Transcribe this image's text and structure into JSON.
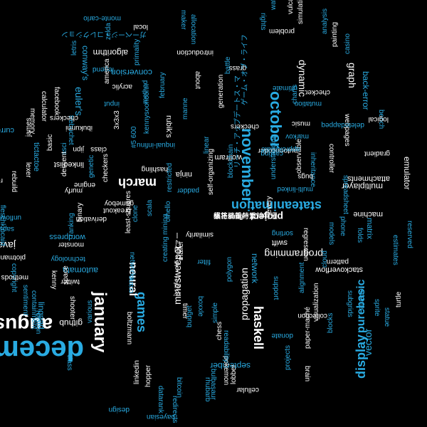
{
  "palette": {
    "background": "#000000",
    "white": "#ffffff",
    "blue": "#29abe2"
  },
  "words": [
    {
      "text": "december",
      "c": "b",
      "s": 40,
      "b": true
    },
    {
      "text": "august",
      "c": "w",
      "s": 28,
      "b": true
    },
    {
      "text": "january",
      "c": "w",
      "s": 24,
      "b": true
    },
    {
      "text": "november",
      "c": "b",
      "s": 22,
      "b": true
    },
    {
      "text": "october",
      "c": "b",
      "s": 22,
      "b": true
    },
    {
      "text": "stateanimation",
      "c": "b",
      "s": 18,
      "b": true
    },
    {
      "text": "display",
      "c": "b",
      "s": 18,
      "b": true
    },
    {
      "text": "march",
      "c": "w",
      "s": 18,
      "b": true
    },
    {
      "text": "haskell",
      "c": "w",
      "s": 18,
      "b": true
    },
    {
      "text": "games",
      "c": "b",
      "s": 18,
      "b": true
    },
    {
      "text": "neural",
      "c": "w",
      "s": 16,
      "b": true
    },
    {
      "text": "purebasic",
      "c": "b",
      "s": 16,
      "b": true
    },
    {
      "text": "propagation",
      "c": "w",
      "s": 14,
      "b": false
    },
    {
      "text": "minesweeper",
      "c": "w",
      "s": 14,
      "b": false
    },
    {
      "text": "javascript",
      "c": "w",
      "s": 14,
      "b": false
    },
    {
      "text": "programming",
      "c": "w",
      "s": 14,
      "b": false
    },
    {
      "text": "vector",
      "c": "b",
      "s": 14,
      "b": false
    },
    {
      "text": "graph",
      "c": "w",
      "s": 14,
      "b": false
    },
    {
      "text": "back-error",
      "c": "b",
      "s": 12,
      "b": false
    },
    {
      "text": "project",
      "c": "w",
      "s": 14,
      "b": true
    },
    {
      "text": "euler's",
      "c": "b",
      "s": 14,
      "b": false
    },
    {
      "text": "dynamic",
      "c": "w",
      "s": 14,
      "b": false
    },
    {
      "text": "github",
      "c": "w",
      "s": 12,
      "b": false
    },
    {
      "text": "conway's",
      "c": "b",
      "s": 12,
      "b": false
    },
    {
      "text": "algorithm",
      "c": "w",
      "s": 12,
      "b": false
    },
    {
      "text": "conversion",
      "c": "b",
      "s": 12,
      "b": false
    },
    {
      "text": "september",
      "c": "b",
      "s": 12,
      "b": false
    },
    {
      "text": "linqpad",
      "c": "b",
      "s": 12,
      "b": false
    },
    {
      "text": "automata",
      "c": "b",
      "s": 12,
      "b": false
    },
    {
      "text": "network",
      "c": "b",
      "s": 12,
      "b": false
    },
    {
      "text": "multiplayer",
      "c": "w",
      "s": 12,
      "b": false
    },
    {
      "text": "emulator",
      "c": "w",
      "s": 12,
      "b": false
    },
    {
      "text": "stackoverflow",
      "c": "w",
      "s": 11,
      "b": false
    },
    {
      "text": "machine",
      "c": "w",
      "s": 11,
      "b": false
    },
    {
      "text": "matrix",
      "c": "b",
      "s": 11,
      "b": false
    },
    {
      "text": "rubik's",
      "c": "w",
      "s": 11,
      "b": false
    },
    {
      "text": "ninja",
      "c": "w",
      "s": 11,
      "b": false
    },
    {
      "text": "wordpress",
      "c": "b",
      "s": 11,
      "b": false
    },
    {
      "text": "tictactoe",
      "c": "b",
      "s": 11,
      "b": false
    },
    {
      "text": "currency",
      "c": "b",
      "s": 11,
      "b": false
    },
    {
      "text": "wolfram",
      "c": "w",
      "s": 11,
      "b": false
    },
    {
      "text": "linkedlist",
      "c": "w",
      "s": 11,
      "b": false
    },
    {
      "text": "swift",
      "c": "w",
      "s": 11,
      "b": false
    },
    {
      "text": "attachments",
      "c": "w",
      "s": 11,
      "b": false
    },
    {
      "text": "introduction",
      "c": "w",
      "s": 10,
      "b": false
    },
    {
      "text": "facebook",
      "c": "w",
      "s": 10,
      "b": false
    },
    {
      "text": "sentiment",
      "c": "b",
      "s": 10,
      "b": false
    },
    {
      "text": "regression",
      "c": "w",
      "s": 10,
      "b": false
    },
    {
      "text": "fleschkincaid",
      "c": "b",
      "s": 10,
      "b": false
    },
    {
      "text": "copyright",
      "c": "b",
      "s": 10,
      "b": false
    },
    {
      "text": "bayesian",
      "c": "b",
      "s": 10,
      "b": false
    },
    {
      "text": "datarank",
      "c": "b",
      "s": 10,
      "b": false
    },
    {
      "text": "pokemon",
      "c": "w",
      "s": 10,
      "b": false
    },
    {
      "text": "readability",
      "c": "b",
      "s": 10,
      "b": false
    },
    {
      "text": "rotation",
      "c": "b",
      "s": 10,
      "b": false
    },
    {
      "text": "monte-carlo",
      "c": "b",
      "s": 10,
      "b": false
    },
    {
      "text": "maker",
      "c": "b",
      "s": 10,
      "b": false
    },
    {
      "text": "allocation",
      "c": "b",
      "s": 10,
      "b": false
    },
    {
      "text": "rights",
      "c": "b",
      "s": 10,
      "b": false
    },
    {
      "text": "mutation",
      "c": "b",
      "s": 10,
      "b": false
    },
    {
      "text": "inheritance",
      "c": "b",
      "s": 10,
      "b": false
    },
    {
      "text": "bench",
      "c": "b",
      "s": 10,
      "b": false
    },
    {
      "text": "gradient",
      "c": "w",
      "s": 10,
      "b": false
    },
    {
      "text": "logical",
      "c": "w",
      "s": 10,
      "b": false
    },
    {
      "text": "reserved",
      "c": "b",
      "s": 10,
      "b": false
    },
    {
      "text": "estimates",
      "c": "b",
      "s": 10,
      "b": false
    },
    {
      "text": "turtle",
      "c": "w",
      "s": 10,
      "b": false
    },
    {
      "text": "sprite",
      "c": "b",
      "s": 10,
      "b": false
    },
    {
      "text": "statue",
      "c": "b",
      "s": 10,
      "b": false
    },
    {
      "text": "subgrids",
      "c": "b",
      "s": 10,
      "b": false
    },
    {
      "text": "resume",
      "c": "b",
      "s": 10,
      "b": false
    },
    {
      "text": "projects",
      "c": "b",
      "s": 10,
      "b": false
    },
    {
      "text": "cellular",
      "c": "w",
      "s": 10,
      "b": false
    },
    {
      "text": "blocks",
      "c": "b",
      "s": 10,
      "b": false
    },
    {
      "text": "visualization",
      "c": "w",
      "s": 10,
      "b": false
    },
    {
      "text": "paper-maché",
      "c": "w",
      "s": 10,
      "b": false
    },
    {
      "text": "brain",
      "c": "w",
      "s": 10,
      "b": false
    },
    {
      "text": "donate",
      "c": "b",
      "s": 10,
      "b": false
    },
    {
      "text": "cloud",
      "c": "b",
      "s": 10,
      "b": false
    },
    {
      "text": "alignment",
      "c": "b",
      "s": 10,
      "b": false
    },
    {
      "text": "collection",
      "c": "w",
      "s": 10,
      "b": false
    },
    {
      "text": "pattern",
      "c": "w",
      "s": 10,
      "b": false
    },
    {
      "text": "support",
      "c": "b",
      "s": 10,
      "b": false
    },
    {
      "text": "sorting",
      "c": "b",
      "s": 10,
      "b": false
    },
    {
      "text": "models",
      "c": "b",
      "s": 10,
      "b": false
    },
    {
      "text": "phone",
      "c": "b",
      "s": 10,
      "b": false
    },
    {
      "text": "folds",
      "c": "b",
      "s": 10,
      "b": false
    },
    {
      "text": "every",
      "c": "w",
      "s": 10,
      "b": false
    },
    {
      "text": "understanding",
      "c": "b",
      "s": 10,
      "b": false
    },
    {
      "text": "observable",
      "c": "w",
      "s": 10,
      "b": false
    },
    {
      "text": "multi-linked",
      "c": "b",
      "s": 10,
      "b": false
    },
    {
      "text": "spreadsheet",
      "c": "b",
      "s": 10,
      "b": false
    },
    {
      "text": "controller",
      "c": "w",
      "s": 10,
      "b": false
    },
    {
      "text": "music",
      "c": "w",
      "s": 10,
      "b": false
    },
    {
      "text": "markov",
      "c": "b",
      "s": 10,
      "b": false
    },
    {
      "text": "autoencoder",
      "c": "w",
      "s": 10,
      "b": false
    },
    {
      "text": "casting",
      "c": "b",
      "s": 10,
      "b": false
    },
    {
      "text": "checkers",
      "c": "w",
      "s": 10,
      "b": false
    },
    {
      "text": "grass",
      "c": "w",
      "s": 10,
      "b": false
    },
    {
      "text": "water",
      "c": "b",
      "s": 10,
      "b": false
    },
    {
      "text": "vulcan",
      "c": "w",
      "s": 10,
      "b": false
    },
    {
      "text": "simulation",
      "c": "w",
      "s": 10,
      "b": false
    },
    {
      "text": "problem",
      "c": "w",
      "s": 10,
      "b": false
    },
    {
      "text": "analysis",
      "c": "b",
      "s": 10,
      "b": false
    },
    {
      "text": "painting",
      "c": "w",
      "s": 10,
      "b": false
    },
    {
      "text": "casino",
      "c": "b",
      "s": 10,
      "b": false
    },
    {
      "text": "checker",
      "c": "w",
      "s": 10,
      "b": false
    },
    {
      "text": "ultimate",
      "c": "b",
      "s": 10,
      "b": false
    },
    {
      "text": "charts",
      "c": "b",
      "s": 10,
      "b": false
    },
    {
      "text": "webpages",
      "c": "w",
      "s": 10,
      "b": false
    },
    {
      "text": "deletedappeq",
      "c": "b",
      "s": 10,
      "b": false
    },
    {
      "text": "local",
      "c": "w",
      "s": 10,
      "b": false
    },
    {
      "text": "zelda",
      "c": "b",
      "s": 10,
      "b": false
    },
    {
      "text": "legend",
      "c": "b",
      "s": 10,
      "b": false
    },
    {
      "text": "primality",
      "c": "b",
      "s": 10,
      "b": false
    },
    {
      "text": "acrylic",
      "c": "w",
      "s": 10,
      "b": false
    },
    {
      "text": "about",
      "c": "w",
      "s": 10,
      "b": false
    },
    {
      "text": "input",
      "c": "b",
      "s": 10,
      "b": false
    },
    {
      "text": "america",
      "c": "w",
      "s": 10,
      "b": false
    },
    {
      "text": "method",
      "c": "b",
      "s": 10,
      "b": false
    },
    {
      "text": "february",
      "c": "b",
      "s": 10,
      "b": false
    },
    {
      "text": "manne",
      "c": "b",
      "s": 10,
      "b": false
    },
    {
      "text": "inqual-infinu",
      "c": "b",
      "s": 10,
      "b": false
    },
    {
      "text": "linear",
      "c": "b",
      "s": 10,
      "b": false
    },
    {
      "text": "generation",
      "c": "w",
      "s": 10,
      "b": false
    },
    {
      "text": "battle",
      "c": "b",
      "s": 10,
      "b": false
    },
    {
      "text": "blockchain",
      "c": "b",
      "s": 10,
      "b": false
    },
    {
      "text": "padder",
      "c": "b",
      "s": 10,
      "b": false
    },
    {
      "text": "self-organizing",
      "c": "w",
      "s": 10,
      "b": false
    },
    {
      "text": "hashling",
      "c": "w",
      "s": 10,
      "b": false
    },
    {
      "text": "gameboy",
      "c": "w",
      "s": 10,
      "b": false
    },
    {
      "text": "othello",
      "c": "b",
      "s": 10,
      "b": false
    },
    {
      "text": "restricted",
      "c": "b",
      "s": 10,
      "b": false
    },
    {
      "text": "breakout",
      "c": "w",
      "s": 10,
      "b": false
    },
    {
      "text": "derivation",
      "c": "w",
      "s": 10,
      "b": false
    },
    {
      "text": "scala",
      "c": "b",
      "s": 10,
      "b": false
    },
    {
      "text": "networks",
      "c": "b",
      "s": 10,
      "b": false
    },
    {
      "text": "least-squares",
      "c": "w",
      "s": 10,
      "b": false
    },
    {
      "text": "monster",
      "c": "w",
      "s": 10,
      "b": false
    },
    {
      "text": "technology",
      "c": "b",
      "s": 10,
      "b": false
    },
    {
      "text": "creating",
      "c": "b",
      "s": 10,
      "b": false
    },
    {
      "text": "twitter",
      "c": "w",
      "s": 10,
      "b": false
    },
    {
      "text": "space",
      "c": "w",
      "s": 10,
      "b": false
    },
    {
      "text": "shooter",
      "c": "w",
      "s": 10,
      "b": false
    },
    {
      "text": "various",
      "c": "b",
      "s": 10,
      "b": false
    },
    {
      "text": "boltzmann",
      "c": "w",
      "s": 10,
      "b": false
    },
    {
      "text": "crane",
      "c": "b",
      "s": 10,
      "b": false
    },
    {
      "text": "mailer",
      "c": "w",
      "s": 10,
      "b": false
    },
    {
      "text": "timer",
      "c": "w",
      "s": 10,
      "b": false
    },
    {
      "text": "budget",
      "c": "b",
      "s": 10,
      "b": false
    },
    {
      "text": "simple",
      "c": "b",
      "s": 10,
      "b": false
    },
    {
      "text": "boxxle",
      "c": "b",
      "s": 10,
      "b": false
    },
    {
      "text": "polygon",
      "c": "b",
      "s": 10,
      "b": false
    },
    {
      "text": "chess",
      "c": "w",
      "s": 10,
      "b": false
    },
    {
      "text": "filter",
      "c": "b",
      "s": 10,
      "b": false
    },
    {
      "text": "similarity",
      "c": "w",
      "s": 10,
      "b": false
    },
    {
      "text": "linkedin",
      "c": "w",
      "s": 10,
      "b": false
    },
    {
      "text": "bulbasaur",
      "c": "b",
      "s": 10,
      "b": false
    },
    {
      "text": "rhubarb",
      "c": "b",
      "s": 10,
      "b": false
    },
    {
      "text": "hopper",
      "c": "w",
      "s": 10,
      "b": false
    },
    {
      "text": "design",
      "c": "b",
      "s": 10,
      "b": false
    },
    {
      "text": "redirects",
      "c": "b",
      "s": 10,
      "b": false
    },
    {
      "text": "bitcoin",
      "c": "b",
      "s": 10,
      "b": false
    },
    {
      "text": "lobber",
      "c": "w",
      "s": 10,
      "b": false
    },
    {
      "text": "class",
      "c": "b",
      "s": 10,
      "b": false
    },
    {
      "text": "ranking",
      "c": "b",
      "s": 10,
      "b": false
    },
    {
      "text": "mining",
      "c": "b",
      "s": 10,
      "b": false
    },
    {
      "text": "clone",
      "c": "b",
      "s": 10,
      "b": false
    },
    {
      "text": "rebuild",
      "c": "w",
      "s": 10,
      "b": false
    },
    {
      "text": "retro",
      "c": "w",
      "s": 10,
      "b": false
    },
    {
      "text": "lexer",
      "c": "w",
      "s": 10,
      "b": false
    },
    {
      "text": "memory",
      "c": "w",
      "s": 10,
      "b": false
    },
    {
      "text": "calculator",
      "c": "w",
      "s": 10,
      "b": false
    },
    {
      "text": "basic",
      "c": "w",
      "s": 10,
      "b": false
    },
    {
      "text": "james",
      "c": "w",
      "s": 10,
      "b": false
    },
    {
      "text": "letris",
      "c": "b",
      "s": 10,
      "b": false
    },
    {
      "text": "trebuchet",
      "c": "b",
      "s": 10,
      "b": false
    },
    {
      "text": "asci",
      "c": "b",
      "s": 10,
      "b": false
    },
    {
      "text": "descent",
      "c": "w",
      "s": 10,
      "b": false
    },
    {
      "text": "unflowhale",
      "c": "b",
      "s": 10,
      "b": false
    },
    {
      "text": "sapsam",
      "c": "b",
      "s": 10,
      "b": false
    },
    {
      "text": "plotman",
      "c": "w",
      "s": 10,
      "b": false
    },
    {
      "text": "kenny",
      "c": "w",
      "s": 10,
      "b": false
    },
    {
      "text": "containment",
      "c": "b",
      "s": 10,
      "b": false
    },
    {
      "text": "methods",
      "c": "w",
      "s": 10,
      "b": false
    },
    {
      "text": "checkers",
      "c": "w",
      "s": 10,
      "b": false
    },
    {
      "text": "ibukurmi",
      "c": "w",
      "s": 10,
      "b": false
    },
    {
      "text": "jipn",
      "c": "w",
      "s": 10,
      "b": false
    },
    {
      "text": "class",
      "c": "w",
      "s": 10,
      "b": false
    },
    {
      "text": "3x3x3",
      "c": "w",
      "s": 10,
      "b": false
    },
    {
      "text": "murfy",
      "c": "w",
      "s": 10,
      "b": false
    },
    {
      "text": "genetic",
      "c": "b",
      "s": 10,
      "b": false
    },
    {
      "text": "engine",
      "c": "w",
      "s": 10,
      "b": false
    },
    {
      "text": "bugs",
      "c": "w",
      "s": 10,
      "b": false
    },
    {
      "text": "approximate",
      "c": "b",
      "s": 10,
      "b": false
    },
    {
      "text": "binary",
      "c": "w",
      "s": 10,
      "b": false
    },
    {
      "text": "kennysoonconn",
      "c": "b",
      "s": 10,
      "b": false
    },
    {
      "text": "#5 600",
      "c": "b",
      "s": 10,
      "b": false
    },
    {
      "text": "checkers",
      "c": "w",
      "s": 10,
      "b": false
    },
    {
      "text": "ガーベージ・コレクション",
      "c": "b",
      "s": 10,
      "b": false
    },
    {
      "text": "ジブリ・ザ・ファー",
      "c": "w",
      "s": 10,
      "b": false
    },
    {
      "text": "ゲーム・オブ・ライフ",
      "c": "b",
      "s": 10,
      "b": false
    },
    {
      "text": "リーチ・アップデートス・マ",
      "c": "b",
      "s": 10,
      "b": false
    },
    {
      "text": "棋将shogi",
      "c": "w",
      "s": 10,
      "b": false
    },
    {
      "text": "棋将shogi",
      "c": "w",
      "s": 10,
      "b": false
    },
    {
      "text": "修正勝重与淡雑特遷",
      "c": "w",
      "s": 10,
      "b": false
    },
    {
      "text": "最与淡雑特重",
      "c": "w",
      "s": 10,
      "b": false
    }
  ]
}
